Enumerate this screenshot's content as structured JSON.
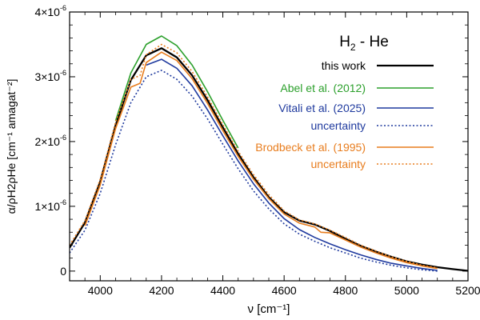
{
  "chart_data": {
    "type": "line",
    "title": "H2 - He",
    "title_parts": {
      "base": "H",
      "sub": "2",
      "rest": " - He"
    },
    "xlabel": "ν [cm⁻¹]",
    "ylabel": "α/ρH2ρHe [cm⁻¹ amagat⁻²]",
    "xlim": [
      3900,
      5200
    ],
    "ylim": [
      -1.5e-07,
      4e-06
    ],
    "grid": false,
    "legend_position": "top-right",
    "x_ticks": [
      4000,
      4200,
      4400,
      4600,
      4800,
      5000,
      5200
    ],
    "x_tick_labels": [
      "4000",
      "4200",
      "4400",
      "4600",
      "4800",
      "5000",
      "5200"
    ],
    "y_ticks": [
      0,
      1e-06,
      2e-06,
      3e-06,
      4e-06
    ],
    "y_tick_labels": [
      {
        "mant": "0",
        "exp": ""
      },
      {
        "mant": "1×10",
        "exp": "-6"
      },
      {
        "mant": "2×10",
        "exp": "-6"
      },
      {
        "mant": "3×10",
        "exp": "-6"
      },
      {
        "mant": "4×10",
        "exp": "-6"
      }
    ],
    "series": [
      {
        "name": "this work",
        "color": "#000000",
        "style": "solid",
        "x": [
          3900,
          3950,
          4000,
          4050,
          4100,
          4150,
          4200,
          4250,
          4300,
          4350,
          4400,
          4450,
          4500,
          4550,
          4600,
          4650,
          4700,
          4750,
          4800,
          4850,
          4900,
          4950,
          5000,
          5050,
          5100,
          5150,
          5200
        ],
        "y": [
          3.6e-07,
          7.5e-07,
          1.38e-06,
          2.25e-06,
          2.95e-06,
          3.33e-06,
          3.44e-06,
          3.3e-06,
          3.02e-06,
          2.64e-06,
          2.22e-06,
          1.81e-06,
          1.45e-06,
          1.14e-06,
          9.1e-07,
          7.8e-07,
          7.2e-07,
          6.2e-07,
          5e-07,
          3.9e-07,
          3e-07,
          2.2e-07,
          1.5e-07,
          1e-07,
          6e-08,
          3e-08,
          5e-09
        ]
      },
      {
        "name": "Abel et al. (2012)",
        "color": "#2ca02c",
        "style": "solid",
        "x": [
          4050,
          4100,
          4150,
          4200,
          4250,
          4300,
          4350,
          4400,
          4450
        ],
        "y": [
          2.32e-06,
          3.06e-06,
          3.5e-06,
          3.63e-06,
          3.48e-06,
          3.18e-06,
          2.77e-06,
          2.33e-06,
          1.9e-06
        ]
      },
      {
        "name": "Vitali et al. (2025)",
        "color": "#1f3a9e",
        "style": "solid",
        "x": [
          4150,
          4200,
          4250,
          4300,
          4350,
          4400,
          4450,
          4500,
          4550,
          4600,
          4650,
          4700,
          4750,
          4800,
          4850,
          4900,
          4950,
          5000,
          5050,
          5100
        ],
        "y": [
          3.18e-06,
          3.27e-06,
          3.13e-06,
          2.86e-06,
          2.49e-06,
          2.09e-06,
          1.7e-06,
          1.35e-06,
          1.05e-06,
          8.1e-07,
          6.4e-07,
          5.2e-07,
          4.2e-07,
          3.3e-07,
          2.5e-07,
          1.8e-07,
          1.2e-07,
          8e-08,
          4e-08,
          1e-08
        ]
      },
      {
        "name": "uncertainty",
        "group": "Vitali et al. (2025)",
        "color": "#1f3a9e",
        "style": "dotted",
        "x": [
          3900,
          3950,
          4000,
          4050,
          4100,
          4150,
          4200,
          4250,
          4300,
          4350,
          4400,
          4450,
          4500,
          4550,
          4600,
          4650,
          4700,
          4750,
          4800,
          4850,
          4900,
          4950,
          5000,
          5050,
          5100
        ],
        "y": [
          2.8e-07,
          6.3e-07,
          1.2e-06,
          1.95e-06,
          2.6e-06,
          3e-06,
          3.1e-06,
          2.96e-06,
          2.7e-06,
          2.35e-06,
          1.96e-06,
          1.58e-06,
          1.24e-06,
          9.6e-07,
          7.3e-07,
          5.7e-07,
          4.6e-07,
          3.6e-07,
          2.8e-07,
          2e-07,
          1.4e-07,
          9e-08,
          5e-08,
          2e-08,
          0.0
        ]
      },
      {
        "name": "Brodbeck et al. (1995)",
        "color": "#e87d1e",
        "style": "solid",
        "x": [
          3950,
          4000,
          4050,
          4100,
          4130,
          4150,
          4200,
          4250,
          4300,
          4350,
          4400,
          4450,
          4500,
          4550,
          4600,
          4650,
          4700,
          4720,
          4750,
          4800,
          4850,
          4900,
          4950,
          5000,
          5050,
          5100
        ],
        "y": [
          7e-07,
          1.33e-06,
          2.2e-06,
          2.84e-06,
          2.9e-06,
          3.22e-06,
          3.38e-06,
          3.25e-06,
          2.97e-06,
          2.59e-06,
          2.17e-06,
          1.77e-06,
          1.42e-06,
          1.12e-06,
          8.8e-07,
          7.4e-07,
          6.8e-07,
          6e-07,
          5.9e-07,
          4.8e-07,
          3.7e-07,
          2.8e-07,
          2e-07,
          1.3e-07,
          8e-08,
          4e-08
        ]
      },
      {
        "name": "uncertainty",
        "group": "Brodbeck et al. (1995)",
        "color": "#e87d1e",
        "style": "dotted",
        "x": [
          3900,
          3950,
          4000,
          4050,
          4100,
          4130,
          4150,
          4200,
          4250,
          4300,
          4350,
          4400,
          4450,
          4500,
          4550,
          4600,
          4650,
          4700,
          4750,
          4800,
          4850,
          4900,
          4950,
          5000,
          5050,
          5100
        ],
        "y": [
          4e-07,
          7.8e-07,
          1.42e-06,
          2.3e-06,
          2.96e-06,
          3.02e-06,
          3.34e-06,
          3.5e-06,
          3.37e-06,
          3.08e-06,
          2.69e-06,
          2.26e-06,
          1.85e-06,
          1.49e-06,
          1.18e-06,
          9.3e-07,
          7.9e-07,
          7.3e-07,
          6.3e-07,
          5.2e-07,
          4e-07,
          3.1e-07,
          2.2e-07,
          1.5e-07,
          9e-08,
          5e-08
        ]
      }
    ],
    "legend": [
      {
        "label": "this work",
        "color": "#000000",
        "style": "solid",
        "text_color": "#000000"
      },
      {
        "label": "Abel et al. (2012)",
        "color": "#2ca02c",
        "style": "solid",
        "text_color": "#2ca02c"
      },
      {
        "label": "Vitali et al. (2025)",
        "color": "#1f3a9e",
        "style": "solid",
        "text_color": "#1f3a9e"
      },
      {
        "label": "uncertainty",
        "color": "#1f3a9e",
        "style": "dotted",
        "text_color": "#1f3a9e"
      },
      {
        "label": "Brodbeck et al. (1995)",
        "color": "#e87d1e",
        "style": "solid",
        "text_color": "#e87d1e"
      },
      {
        "label": "uncertainty",
        "color": "#e87d1e",
        "style": "dotted",
        "text_color": "#e87d1e"
      }
    ]
  }
}
